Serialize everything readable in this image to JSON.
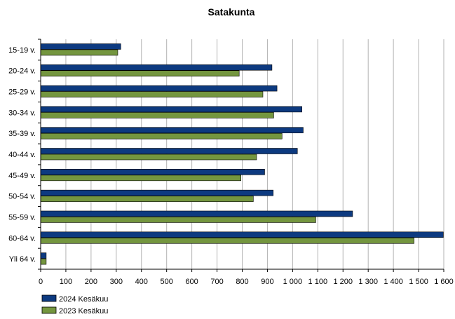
{
  "chart_data": {
    "type": "bar",
    "orientation": "horizontal",
    "title": "Satakunta",
    "xlabel": "",
    "ylabel": "",
    "xlim": [
      0,
      1600
    ],
    "x_ticks": [
      0,
      100,
      200,
      300,
      400,
      500,
      600,
      700,
      800,
      900,
      1000,
      1100,
      1200,
      1300,
      1400,
      1500,
      1600
    ],
    "x_tick_labels": [
      "0",
      "100",
      "200",
      "300",
      "400",
      "500",
      "600",
      "700",
      "800",
      "900",
      "1 000",
      "1 100",
      "1 200",
      "1 300",
      "1 400",
      "1 500",
      "1 600"
    ],
    "grid": true,
    "legend_position": "bottom-left",
    "categories": [
      "15-19 v.",
      "20-24 v.",
      "25-29 v.",
      "30-34 v.",
      "35-39 v.",
      "40-44 v.",
      "45-49 v.",
      "50-54 v.",
      "55-59 v.",
      "60-64 v.",
      "Yli 64 v."
    ],
    "series": [
      {
        "name": "2024 Kesäkuu",
        "color": "#0d3a80",
        "values": [
          318,
          918,
          938,
          1037,
          1042,
          1019,
          889,
          923,
          1238,
          1598,
          22
        ]
      },
      {
        "name": "2023 Kesäkuu",
        "color": "#74963f",
        "values": [
          306,
          788,
          882,
          925,
          958,
          857,
          795,
          844,
          1092,
          1482,
          22
        ]
      }
    ]
  }
}
